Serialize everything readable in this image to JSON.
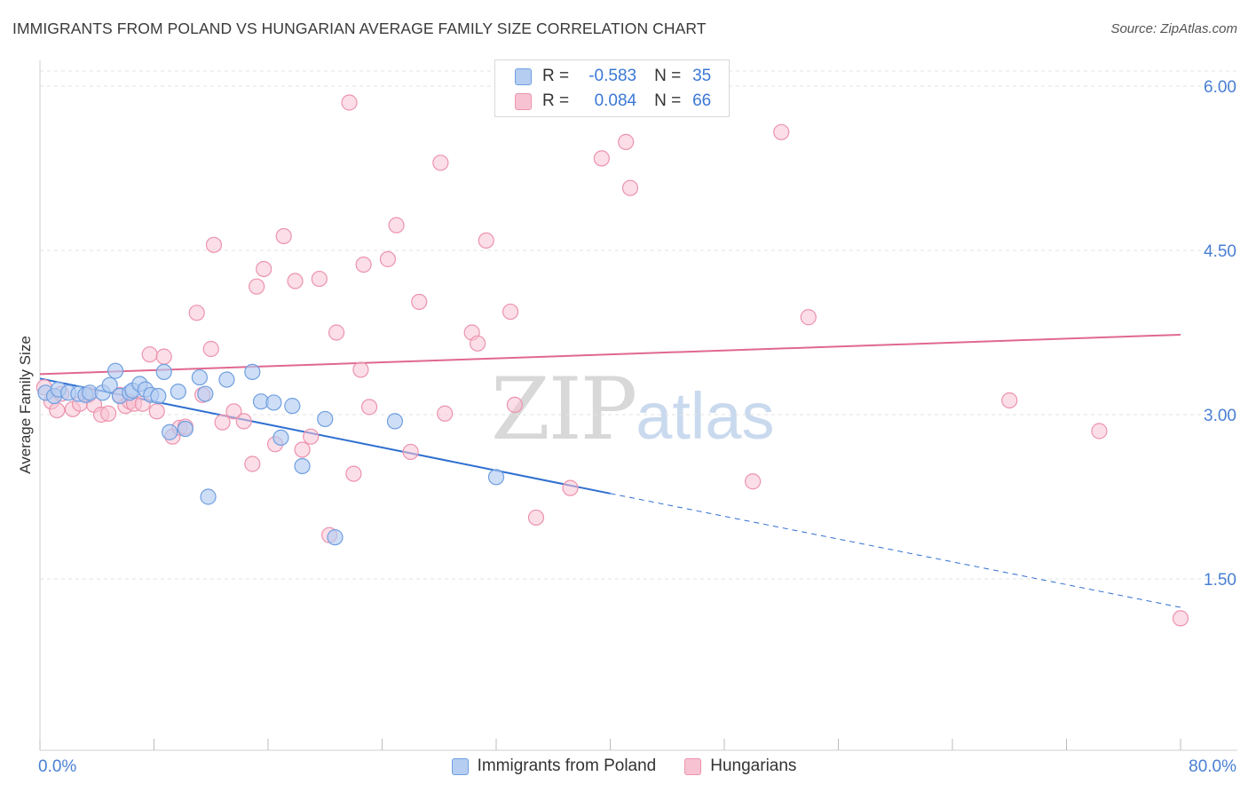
{
  "header": {
    "title": "IMMIGRANTS FROM POLAND VS HUNGARIAN AVERAGE FAMILY SIZE CORRELATION CHART",
    "source": "Source: ZipAtlas.com"
  },
  "watermark": {
    "zip": "ZIP",
    "atlas": "atlas"
  },
  "legend_top": {
    "rows": [
      {
        "r_label": "R =",
        "r_value": "-0.583",
        "n_label": "N =",
        "n_value": "35"
      },
      {
        "r_label": "R =",
        "r_value": "0.084",
        "n_label": "N =",
        "n_value": "66"
      }
    ]
  },
  "legend_bottom": {
    "series1": "Immigrants from Poland",
    "series2": "Hungarians"
  },
  "colors": {
    "poland_fill": "#b4cdf1",
    "poland_stroke": "#6f9fe0",
    "poland_line": "#2f6fd1",
    "hungary_fill": "#f7c3d3",
    "hungary_stroke": "#ec93ad",
    "hungary_line": "#e06890",
    "tick_label": "#4a7fd4"
  },
  "chart_data": {
    "type": "scatter",
    "title": "IMMIGRANTS FROM POLAND VS HUNGARIAN AVERAGE FAMILY SIZE CORRELATION CHART",
    "xlabel": "",
    "ylabel": "Average Family Size",
    "xlim": [
      0,
      80
    ],
    "ylim": [
      0.3,
      6.3
    ],
    "x_tick_labels": [
      "0.0%",
      "80.0%"
    ],
    "y_ticks": [
      1.5,
      3.0,
      4.5,
      6.0
    ],
    "y_tick_labels": [
      "1.50",
      "3.00",
      "4.50",
      "6.00"
    ],
    "grid": "horizontal dashed",
    "legend_position": "top-center",
    "series": [
      {
        "name": "Immigrants from Poland",
        "r": -0.583,
        "n": 35,
        "trend": {
          "x0": 0,
          "y0": 3.33,
          "x1": 40,
          "y1": 2.28,
          "dashed_to_x": 80,
          "dashed_to_y": 1.24
        },
        "points": [
          [
            0.4,
            3.2
          ],
          [
            1.0,
            3.17
          ],
          [
            1.3,
            3.23
          ],
          [
            2.0,
            3.2
          ],
          [
            2.7,
            3.19
          ],
          [
            3.2,
            3.18
          ],
          [
            3.5,
            3.2
          ],
          [
            4.4,
            3.2
          ],
          [
            4.9,
            3.27
          ],
          [
            5.3,
            3.4
          ],
          [
            5.6,
            3.17
          ],
          [
            6.3,
            3.2
          ],
          [
            6.5,
            3.22
          ],
          [
            7.0,
            3.28
          ],
          [
            7.4,
            3.23
          ],
          [
            7.8,
            3.18
          ],
          [
            8.3,
            3.17
          ],
          [
            8.7,
            3.39
          ],
          [
            9.1,
            2.84
          ],
          [
            9.7,
            3.21
          ],
          [
            10.2,
            2.87
          ],
          [
            11.2,
            3.34
          ],
          [
            11.6,
            3.19
          ],
          [
            13.1,
            3.32
          ],
          [
            14.9,
            3.39
          ],
          [
            15.5,
            3.12
          ],
          [
            16.4,
            3.11
          ],
          [
            16.9,
            2.79
          ],
          [
            17.7,
            3.08
          ],
          [
            18.4,
            2.53
          ],
          [
            20.0,
            2.96
          ],
          [
            20.7,
            1.88
          ],
          [
            24.9,
            2.94
          ],
          [
            32.0,
            2.43
          ],
          [
            11.8,
            2.25
          ]
        ]
      },
      {
        "name": "Hungarians",
        "r": 0.084,
        "n": 66,
        "trend": {
          "x0": 0,
          "y0": 3.37,
          "x1": 80,
          "y1": 3.73
        },
        "points": [
          [
            0.3,
            3.25
          ],
          [
            0.8,
            3.12
          ],
          [
            1.2,
            3.04
          ],
          [
            1.5,
            3.19
          ],
          [
            2.3,
            3.05
          ],
          [
            2.8,
            3.1
          ],
          [
            3.4,
            3.18
          ],
          [
            3.8,
            3.09
          ],
          [
            4.3,
            3.0
          ],
          [
            4.8,
            3.01
          ],
          [
            5.6,
            3.18
          ],
          [
            6.0,
            3.08
          ],
          [
            6.3,
            3.12
          ],
          [
            6.6,
            3.1
          ],
          [
            7.2,
            3.1
          ],
          [
            7.7,
            3.55
          ],
          [
            8.2,
            3.03
          ],
          [
            8.7,
            3.53
          ],
          [
            9.3,
            2.8
          ],
          [
            9.8,
            2.88
          ],
          [
            10.2,
            2.89
          ],
          [
            11.0,
            3.93
          ],
          [
            11.4,
            3.18
          ],
          [
            12.0,
            3.6
          ],
          [
            12.2,
            4.55
          ],
          [
            12.8,
            2.93
          ],
          [
            13.6,
            3.03
          ],
          [
            14.3,
            2.94
          ],
          [
            14.9,
            2.55
          ],
          [
            15.2,
            4.17
          ],
          [
            15.7,
            4.33
          ],
          [
            16.5,
            2.73
          ],
          [
            17.1,
            4.63
          ],
          [
            17.9,
            4.22
          ],
          [
            18.4,
            2.68
          ],
          [
            19.0,
            2.8
          ],
          [
            19.6,
            4.24
          ],
          [
            20.3,
            1.9
          ],
          [
            20.8,
            3.75
          ],
          [
            21.7,
            5.85
          ],
          [
            22.0,
            2.46
          ],
          [
            22.5,
            3.41
          ],
          [
            22.7,
            4.37
          ],
          [
            23.1,
            3.07
          ],
          [
            24.4,
            4.42
          ],
          [
            25.0,
            4.73
          ],
          [
            26.0,
            2.66
          ],
          [
            26.6,
            4.03
          ],
          [
            28.1,
            5.3
          ],
          [
            28.4,
            3.01
          ],
          [
            30.3,
            3.75
          ],
          [
            30.7,
            3.65
          ],
          [
            31.3,
            4.59
          ],
          [
            33.0,
            3.94
          ],
          [
            33.3,
            3.09
          ],
          [
            34.8,
            2.06
          ],
          [
            37.2,
            2.33
          ],
          [
            39.4,
            5.34
          ],
          [
            41.1,
            5.49
          ],
          [
            41.4,
            5.07
          ],
          [
            50.0,
            2.39
          ],
          [
            52.0,
            5.58
          ],
          [
            53.9,
            3.89
          ],
          [
            68.0,
            3.13
          ],
          [
            74.3,
            2.85
          ],
          [
            80.0,
            1.14
          ]
        ]
      }
    ]
  }
}
